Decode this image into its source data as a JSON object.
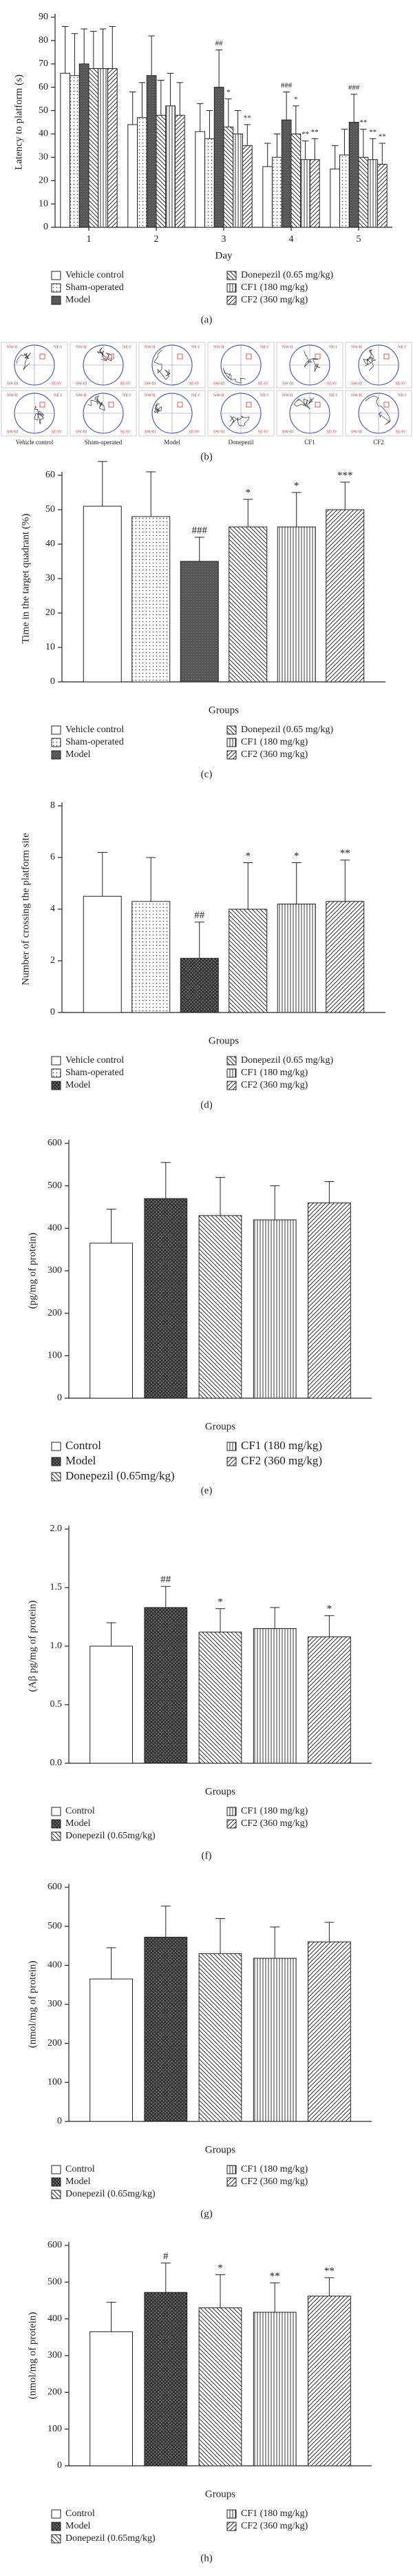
{
  "chart_data": [
    {
      "type": "bar",
      "label": "(a)",
      "y_label": "Latency to platform (s)",
      "x_label": "Day",
      "categories": [
        "1",
        "2",
        "3",
        "4",
        "5"
      ],
      "ylim": [
        0,
        90
      ],
      "yticks": [
        0,
        10,
        20,
        30,
        40,
        50,
        60,
        70,
        80,
        90
      ],
      "series": [
        {
          "name": "Vehicle control",
          "pattern": "white",
          "values": [
            66,
            44,
            41,
            26,
            25
          ],
          "errors": [
            20,
            14,
            12,
            10,
            10
          ],
          "annotations": [
            null,
            null,
            null,
            null,
            null
          ]
        },
        {
          "name": "Sham-operated",
          "pattern": "dots",
          "values": [
            65,
            47,
            38,
            30,
            31
          ],
          "errors": [
            18,
            15,
            12,
            10,
            11
          ],
          "annotations": [
            null,
            null,
            null,
            null,
            null
          ]
        },
        {
          "name": "Model",
          "pattern": "dark",
          "values": [
            70,
            65,
            60,
            46,
            45
          ],
          "errors": [
            15,
            17,
            16,
            12,
            12
          ],
          "annotations": [
            null,
            null,
            "##",
            "###",
            "###"
          ]
        },
        {
          "name": "Donepezil (0.65 mg/kg)",
          "pattern": "diag",
          "values": [
            68,
            48,
            43,
            40,
            30
          ],
          "errors": [
            16,
            15,
            12,
            12,
            12
          ],
          "annotations": [
            null,
            null,
            "*",
            "*",
            "**"
          ]
        },
        {
          "name": "CF1 (180 mg/kg)",
          "pattern": "vert",
          "values": [
            68,
            52,
            40,
            29,
            29
          ],
          "errors": [
            17,
            14,
            10,
            8,
            9
          ],
          "annotations": [
            null,
            null,
            null,
            "**",
            "**"
          ]
        },
        {
          "name": "CF2 (360 mg/kg)",
          "pattern": "diag2",
          "values": [
            68,
            48,
            35,
            29,
            27
          ],
          "errors": [
            18,
            14,
            9,
            9,
            9
          ],
          "annotations": [
            null,
            null,
            "**",
            "**",
            "**"
          ]
        }
      ]
    },
    {
      "type": "bar",
      "label": "(c)",
      "y_label": "Time in the target quadrant (%)",
      "x_label": "Groups",
      "categories": [
        null
      ],
      "ylim": [
        0,
        60
      ],
      "yticks": [
        0,
        10,
        20,
        30,
        40,
        50,
        60
      ],
      "series": [
        {
          "name": "Vehicle control",
          "pattern": "white",
          "values": [
            51
          ],
          "errors": [
            13
          ],
          "annotations": [
            null
          ]
        },
        {
          "name": "Sham-operated",
          "pattern": "dots",
          "values": [
            48
          ],
          "errors": [
            13
          ],
          "annotations": [
            null
          ]
        },
        {
          "name": "Model",
          "pattern": "dark",
          "values": [
            35
          ],
          "errors": [
            7
          ],
          "annotations": [
            "###"
          ]
        },
        {
          "name": "Donepezil (0.65 mg/kg)",
          "pattern": "diag",
          "values": [
            45
          ],
          "errors": [
            8
          ],
          "annotations": [
            "*"
          ]
        },
        {
          "name": "CF1 (180 mg/kg)",
          "pattern": "vert",
          "values": [
            45
          ],
          "errors": [
            10
          ],
          "annotations": [
            "*"
          ]
        },
        {
          "name": "CF2 (360 mg/kg)",
          "pattern": "diag2",
          "values": [
            50
          ],
          "errors": [
            8
          ],
          "annotations": [
            "***"
          ]
        }
      ]
    },
    {
      "type": "bar",
      "label": "(d)",
      "y_label": "Number of crossing the platform site",
      "x_label": "Groups",
      "categories": [
        null
      ],
      "ylim": [
        0,
        8
      ],
      "yticks": [
        0,
        2,
        4,
        6,
        8
      ],
      "series": [
        {
          "name": "Vehicle control",
          "pattern": "white",
          "values": [
            4.5
          ],
          "errors": [
            1.7
          ],
          "annotations": [
            null
          ]
        },
        {
          "name": "Sham-operated",
          "pattern": "dots",
          "values": [
            4.3
          ],
          "errors": [
            1.7
          ],
          "annotations": [
            null
          ]
        },
        {
          "name": "Model",
          "pattern": "cross",
          "values": [
            2.1
          ],
          "errors": [
            1.4
          ],
          "annotations": [
            "##"
          ]
        },
        {
          "name": "Donepezil (0.65 mg/kg)",
          "pattern": "diag",
          "values": [
            4.0
          ],
          "errors": [
            1.8
          ],
          "annotations": [
            "*"
          ]
        },
        {
          "name": "CF1 (180 mg/kg)",
          "pattern": "vert",
          "values": [
            4.2
          ],
          "errors": [
            1.6
          ],
          "annotations": [
            "*"
          ]
        },
        {
          "name": "CF2 (360 mg/kg)",
          "pattern": "diag2",
          "values": [
            4.3
          ],
          "errors": [
            1.6
          ],
          "annotations": [
            "**"
          ]
        }
      ]
    },
    {
      "type": "bar",
      "label": "(e)",
      "y_label": "(pg/mg of protein)",
      "x_label": "Groups",
      "categories": [
        null
      ],
      "ylim": [
        0,
        600
      ],
      "yticks": [
        0,
        100,
        200,
        300,
        400,
        500,
        600
      ],
      "series": [
        {
          "name": "Control",
          "pattern": "white",
          "values": [
            365
          ],
          "errors": [
            80
          ],
          "annotations": [
            null
          ]
        },
        {
          "name": "Model",
          "pattern": "cross",
          "values": [
            470
          ],
          "errors": [
            85
          ],
          "annotations": [
            null
          ]
        },
        {
          "name": "Donepezil (0.65mg/kg)",
          "pattern": "diag",
          "values": [
            430
          ],
          "errors": [
            90
          ],
          "annotations": [
            null
          ]
        },
        {
          "name": "CF1 (180 mg/kg)",
          "pattern": "vert",
          "values": [
            420
          ],
          "errors": [
            80
          ],
          "annotations": [
            null
          ]
        },
        {
          "name": "CF2 (360 mg/kg)",
          "pattern": "diag2",
          "values": [
            460
          ],
          "errors": [
            50
          ],
          "annotations": [
            null
          ]
        }
      ]
    },
    {
      "type": "bar",
      "label": "(f)",
      "y_label": "(Aβ pg/mg of protein)",
      "x_label": "Groups",
      "categories": [
        null
      ],
      "ylim": [
        0,
        2
      ],
      "yticks": [
        {
          "value": 0,
          "label": "0.0"
        },
        0.5,
        {
          "value": 1,
          "label": "1.0"
        },
        1.5,
        {
          "value": 2,
          "label": "2.0"
        }
      ],
      "series": [
        {
          "name": "Control",
          "pattern": "white",
          "values": [
            1.0
          ],
          "errors": [
            0.2
          ],
          "annotations": [
            null
          ]
        },
        {
          "name": "Model",
          "pattern": "cross",
          "values": [
            1.33
          ],
          "errors": [
            0.18
          ],
          "annotations": [
            "##"
          ]
        },
        {
          "name": "Donepezil (0.65mg/kg)",
          "pattern": "diag",
          "values": [
            1.12
          ],
          "errors": [
            0.2
          ],
          "annotations": [
            "*"
          ]
        },
        {
          "name": "CF1 (180 mg/kg)",
          "pattern": "vert",
          "values": [
            1.15
          ],
          "errors": [
            0.18
          ],
          "annotations": [
            null
          ]
        },
        {
          "name": "CF2 (360 mg/kg)",
          "pattern": "diag2",
          "values": [
            1.08
          ],
          "errors": [
            0.18
          ],
          "annotations": [
            "*"
          ]
        }
      ]
    },
    {
      "type": "bar",
      "label": "(g)",
      "y_label": "(nmol/mg of protein)",
      "x_label": "Groups",
      "categories": [
        null
      ],
      "ylim": [
        0,
        600
      ],
      "yticks": [
        0,
        100,
        200,
        300,
        400,
        500,
        600
      ],
      "series": [
        {
          "name": "Control",
          "pattern": "white",
          "values": [
            365
          ],
          "errors": [
            80
          ],
          "annotations": [
            null
          ]
        },
        {
          "name": "Model",
          "pattern": "cross",
          "values": [
            472
          ],
          "errors": [
            80
          ],
          "annotations": [
            null
          ]
        },
        {
          "name": "Donepezil (0.65mg/kg)",
          "pattern": "diag",
          "values": [
            430
          ],
          "errors": [
            90
          ],
          "annotations": [
            null
          ]
        },
        {
          "name": "CF1 (180 mg/kg)",
          "pattern": "vert",
          "values": [
            418
          ],
          "errors": [
            80
          ],
          "annotations": [
            null
          ]
        },
        {
          "name": "CF2 (360 mg/kg)",
          "pattern": "diag2",
          "values": [
            460
          ],
          "errors": [
            50
          ],
          "annotations": [
            null
          ]
        }
      ]
    },
    {
      "type": "bar",
      "label": "(h)",
      "y_label": "(nmol/mg of protein)",
      "x_label": "Groups",
      "categories": [
        null
      ],
      "ylim": [
        0,
        600
      ],
      "yticks": [
        0,
        100,
        200,
        300,
        400,
        500,
        600
      ],
      "series": [
        {
          "name": "Control",
          "pattern": "white",
          "values": [
            365
          ],
          "errors": [
            80
          ],
          "annotations": [
            null
          ]
        },
        {
          "name": "Model",
          "pattern": "cross",
          "values": [
            472
          ],
          "errors": [
            80
          ],
          "annotations": [
            "#"
          ]
        },
        {
          "name": "Donepezil (0.65mg/kg)",
          "pattern": "diag",
          "values": [
            430
          ],
          "errors": [
            90
          ],
          "annotations": [
            "*"
          ]
        },
        {
          "name": "CF1 (180 mg/kg)",
          "pattern": "vert",
          "values": [
            418
          ],
          "errors": [
            80
          ],
          "annotations": [
            "**"
          ]
        },
        {
          "name": "CF2 (360 mg/kg)",
          "pattern": "diag2",
          "values": [
            462
          ],
          "errors": [
            50
          ],
          "annotations": [
            "**"
          ]
        }
      ]
    }
  ],
  "figure_b": {
    "label": "(b)",
    "quadrants": [
      "NW-II",
      "NE-I",
      "SW-III",
      "SE-IV"
    ],
    "groups": [
      "Vehicle control",
      "Sham-operated",
      "Model",
      "Donepezil",
      "CF1",
      "CF2"
    ]
  }
}
